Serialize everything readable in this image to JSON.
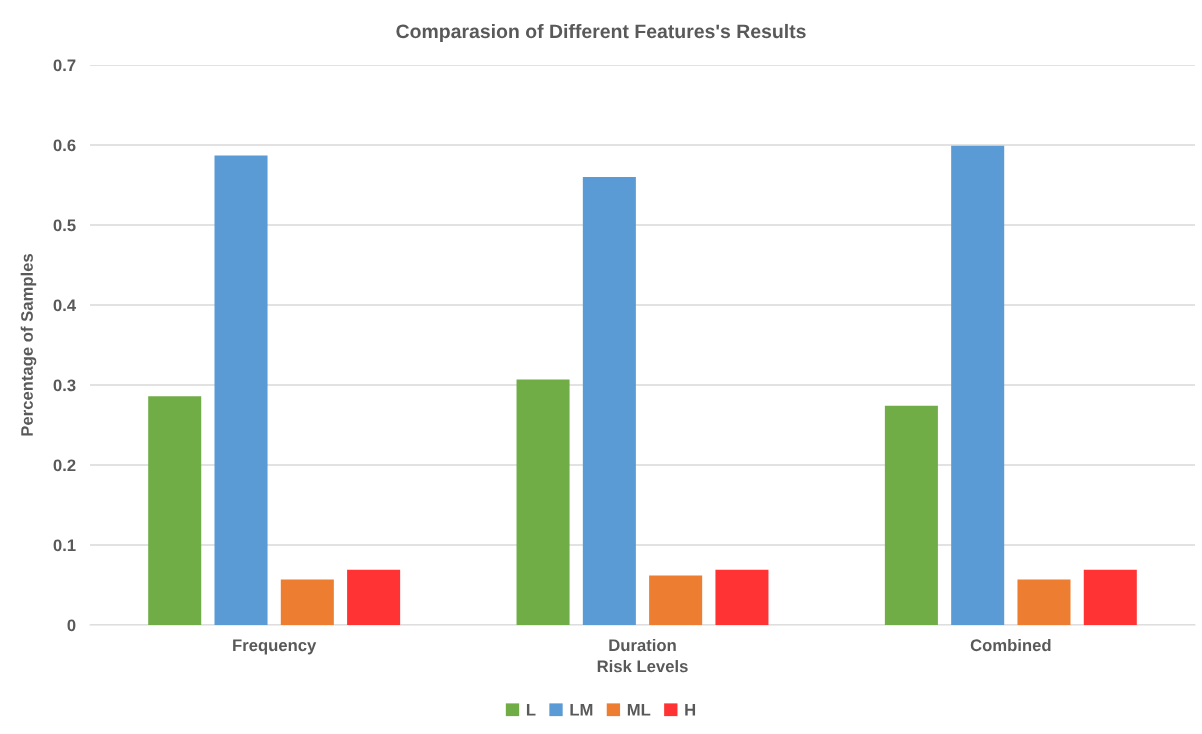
{
  "chart_data": {
    "type": "bar",
    "title": "Comparasion of Different Features's Results",
    "xlabel": "Risk Levels",
    "ylabel": "Percentage of Samples",
    "categories": [
      "Frequency",
      "Duration",
      "Combined"
    ],
    "series": [
      {
        "name": "L",
        "color": "#70ad47",
        "values": [
          0.286,
          0.307,
          0.274
        ]
      },
      {
        "name": "LM",
        "color": "#5b9bd5",
        "values": [
          0.587,
          0.56,
          0.599
        ]
      },
      {
        "name": "ML",
        "color": "#ed7d31",
        "values": [
          0.057,
          0.062,
          0.057
        ]
      },
      {
        "name": "H",
        "color": "#ff3333",
        "values": [
          0.069,
          0.069,
          0.069
        ]
      }
    ],
    "ylim": [
      0,
      0.7
    ],
    "yticks": [
      0,
      0.1,
      0.2,
      0.3,
      0.4,
      0.5,
      0.6,
      0.7
    ],
    "grid": "y",
    "legend": "bottom"
  }
}
